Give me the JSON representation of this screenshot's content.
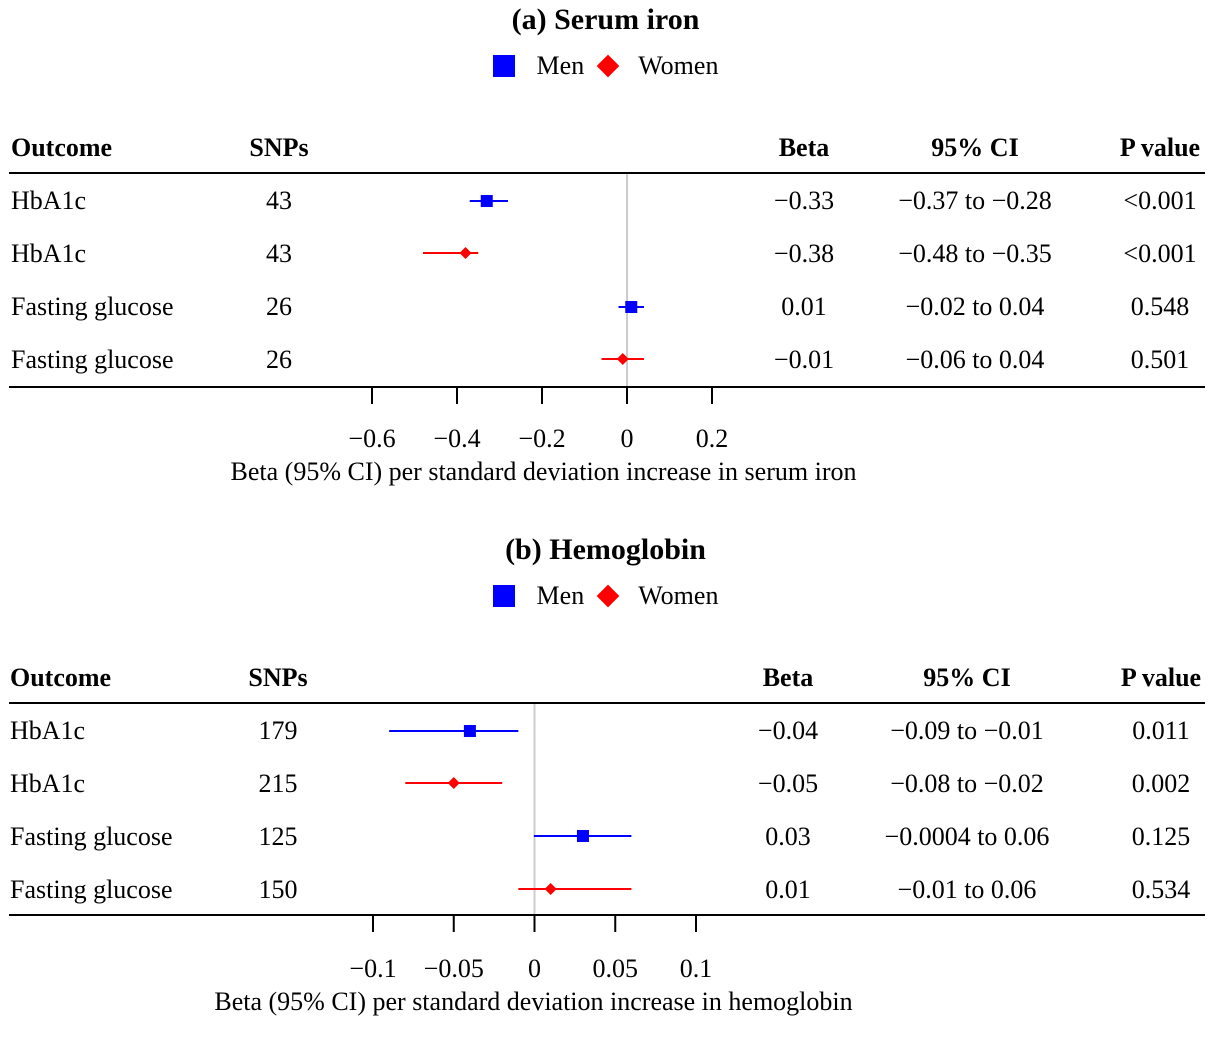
{
  "chart_data": [
    {
      "type": "forest",
      "title": "(a) Serum iron",
      "legend": [
        {
          "name": "Men",
          "color": "#0000ff",
          "marker": "square"
        },
        {
          "name": "Women",
          "color": "#ff0000",
          "marker": "diamond"
        }
      ],
      "columns": {
        "outcome": "Outcome",
        "snps": "SNPs",
        "beta": "Beta",
        "ci": "95% CI",
        "p": "P value"
      },
      "rows": [
        {
          "outcome": "HbA1c",
          "snps": "43",
          "series": "Men",
          "beta": -0.33,
          "lo": -0.37,
          "hi": -0.28,
          "beta_text": "−0.33",
          "ci_text": "−0.37 to −0.28",
          "p_text": "<0.001"
        },
        {
          "outcome": "HbA1c",
          "snps": "43",
          "series": "Women",
          "beta": -0.38,
          "lo": -0.48,
          "hi": -0.35,
          "beta_text": "−0.38",
          "ci_text": "−0.48 to −0.35",
          "p_text": "<0.001"
        },
        {
          "outcome": "Fasting glucose",
          "snps": "26",
          "series": "Men",
          "beta": 0.01,
          "lo": -0.02,
          "hi": 0.04,
          "beta_text": "0.01",
          "ci_text": "−0.02 to 0.04",
          "p_text": "0.548"
        },
        {
          "outcome": "Fasting glucose",
          "snps": "26",
          "series": "Women",
          "beta": -0.01,
          "lo": -0.06,
          "hi": 0.04,
          "beta_text": "−0.01",
          "ci_text": "−0.06 to 0.04",
          "p_text": "0.501"
        }
      ],
      "xticks": [
        -0.6,
        -0.4,
        -0.2,
        0,
        0.2
      ],
      "xtick_labels": [
        "−0.6",
        "−0.4",
        "−0.2",
        "0",
        "0.2"
      ],
      "xlim": [
        -0.6,
        0.2
      ],
      "reference_line": 0,
      "xlabel": "Beta (95% CI) per standard deviation increase in serum iron"
    },
    {
      "type": "forest",
      "title": "(b) Hemoglobin",
      "legend": [
        {
          "name": "Men",
          "color": "#0000ff",
          "marker": "square"
        },
        {
          "name": "Women",
          "color": "#ff0000",
          "marker": "diamond"
        }
      ],
      "columns": {
        "outcome": "Outcome",
        "snps": "SNPs",
        "beta": "Beta",
        "ci": "95% CI",
        "p": "P value"
      },
      "rows": [
        {
          "outcome": "HbA1c",
          "snps": "179",
          "series": "Men",
          "beta": -0.04,
          "lo": -0.09,
          "hi": -0.01,
          "beta_text": "−0.04",
          "ci_text": "−0.09 to −0.01",
          "p_text": "0.011"
        },
        {
          "outcome": "HbA1c",
          "snps": "215",
          "series": "Women",
          "beta": -0.05,
          "lo": -0.08,
          "hi": -0.02,
          "beta_text": "−0.05",
          "ci_text": "−0.08 to −0.02",
          "p_text": "0.002"
        },
        {
          "outcome": "Fasting glucose",
          "snps": "125",
          "series": "Men",
          "beta": 0.03,
          "lo": -0.0004,
          "hi": 0.06,
          "beta_text": "0.03",
          "ci_text": "−0.0004 to 0.06",
          "p_text": "0.125"
        },
        {
          "outcome": "Fasting glucose",
          "snps": "150",
          "series": "Women",
          "beta": 0.01,
          "lo": -0.01,
          "hi": 0.06,
          "beta_text": "0.01",
          "ci_text": "−0.01 to 0.06",
          "p_text": "0.534"
        }
      ],
      "xticks": [
        -0.1,
        -0.05,
        0,
        0.05,
        0.1
      ],
      "xtick_labels": [
        "−0.1",
        "−0.05",
        "0",
        "0.05",
        "0.1"
      ],
      "xlim": [
        -0.1,
        0.1
      ],
      "reference_line": 0,
      "xlabel": "Beta (95% CI) per standard deviation increase in hemoglobin"
    }
  ]
}
